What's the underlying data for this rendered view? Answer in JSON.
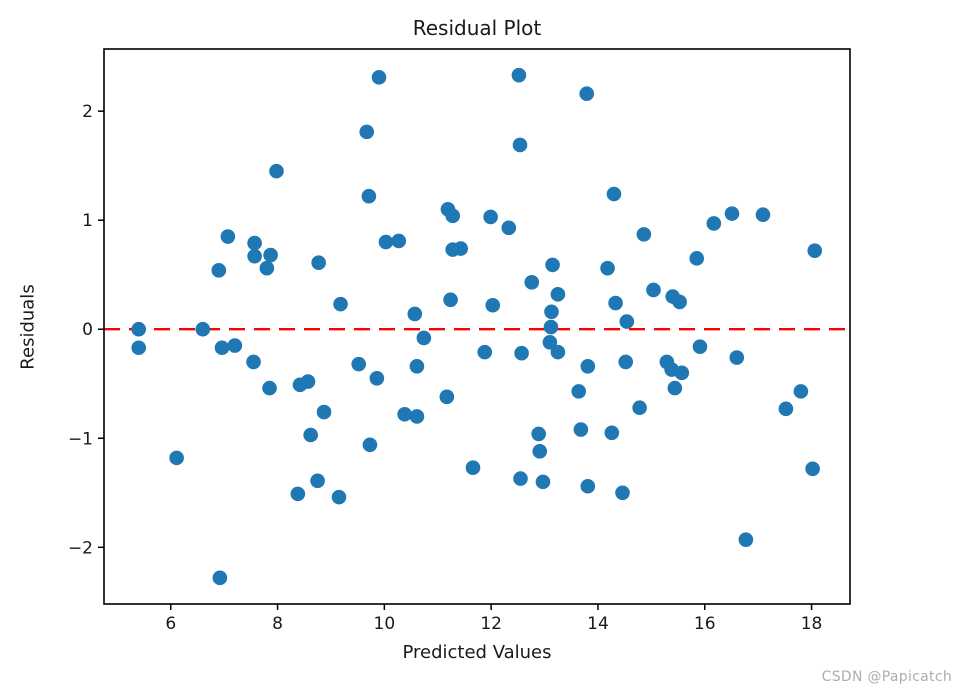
{
  "title": "Residual Plot",
  "watermark": "CSDN @Papicatch",
  "chart_data": {
    "type": "scatter",
    "title": "Residual Plot",
    "xlabel": "Predicted Values",
    "ylabel": "Residuals",
    "xlim": [
      4.75,
      18.72
    ],
    "ylim": [
      -2.52,
      2.57
    ],
    "x_ticks": [
      6,
      8,
      10,
      12,
      14,
      16,
      18
    ],
    "y_ticks": [
      -2,
      -1,
      0,
      1,
      2
    ],
    "grid": false,
    "legend": null,
    "point_color": "#1f77b4",
    "axis_color": "#000000",
    "zero_line": {
      "y": 0,
      "color": "#ff0000",
      "style": "dashed",
      "width": 2.4
    },
    "points": [
      [
        9.9,
        2.31
      ],
      [
        12.52,
        2.33
      ],
      [
        13.79,
        2.16
      ],
      [
        9.67,
        1.81
      ],
      [
        12.54,
        1.69
      ],
      [
        7.98,
        1.45
      ],
      [
        9.71,
        1.22
      ],
      [
        14.3,
        1.24
      ],
      [
        11.19,
        1.1
      ],
      [
        11.28,
        1.04
      ],
      [
        11.99,
        1.03
      ],
      [
        16.51,
        1.06
      ],
      [
        17.09,
        1.05
      ],
      [
        16.17,
        0.97
      ],
      [
        12.33,
        0.93
      ],
      [
        14.86,
        0.87
      ],
      [
        7.07,
        0.85
      ],
      [
        10.03,
        0.8
      ],
      [
        10.27,
        0.81
      ],
      [
        7.57,
        0.79
      ],
      [
        7.57,
        0.67
      ],
      [
        7.87,
        0.68
      ],
      [
        7.8,
        0.56
      ],
      [
        6.9,
        0.54
      ],
      [
        8.77,
        0.61
      ],
      [
        11.28,
        0.73
      ],
      [
        11.43,
        0.74
      ],
      [
        13.15,
        0.59
      ],
      [
        12.76,
        0.43
      ],
      [
        13.25,
        0.32
      ],
      [
        11.24,
        0.27
      ],
      [
        12.03,
        0.22
      ],
      [
        9.18,
        0.23
      ],
      [
        10.57,
        0.14
      ],
      [
        13.13,
        0.16
      ],
      [
        13.12,
        0.02
      ],
      [
        5.4,
        0.0
      ],
      [
        6.6,
        0.0
      ],
      [
        14.18,
        0.56
      ],
      [
        15.85,
        0.65
      ],
      [
        18.06,
        0.72
      ],
      [
        15.04,
        0.36
      ],
      [
        15.4,
        0.3
      ],
      [
        15.53,
        0.25
      ],
      [
        14.33,
        0.24
      ],
      [
        14.54,
        0.07
      ],
      [
        10.74,
        -0.08
      ],
      [
        5.4,
        -0.17
      ],
      [
        6.96,
        -0.17
      ],
      [
        7.2,
        -0.15
      ],
      [
        7.55,
        -0.3
      ],
      [
        13.1,
        -0.12
      ],
      [
        13.25,
        -0.21
      ],
      [
        11.88,
        -0.21
      ],
      [
        12.57,
        -0.22
      ],
      [
        15.91,
        -0.16
      ],
      [
        9.52,
        -0.32
      ],
      [
        9.86,
        -0.45
      ],
      [
        10.61,
        -0.34
      ],
      [
        7.85,
        -0.54
      ],
      [
        8.42,
        -0.51
      ],
      [
        8.57,
        -0.48
      ],
      [
        11.17,
        -0.62
      ],
      [
        10.38,
        -0.78
      ],
      [
        10.61,
        -0.8
      ],
      [
        8.87,
        -0.76
      ],
      [
        13.64,
        -0.57
      ],
      [
        13.81,
        -0.34
      ],
      [
        14.52,
        -0.3
      ],
      [
        15.29,
        -0.3
      ],
      [
        15.38,
        -0.37
      ],
      [
        15.57,
        -0.4
      ],
      [
        15.44,
        -0.54
      ],
      [
        16.6,
        -0.26
      ],
      [
        14.78,
        -0.72
      ],
      [
        17.52,
        -0.73
      ],
      [
        17.8,
        -0.57
      ],
      [
        8.62,
        -0.97
      ],
      [
        6.11,
        -1.18
      ],
      [
        9.73,
        -1.06
      ],
      [
        8.75,
        -1.39
      ],
      [
        8.38,
        -1.51
      ],
      [
        9.15,
        -1.54
      ],
      [
        6.92,
        -2.28
      ],
      [
        11.66,
        -1.27
      ],
      [
        12.55,
        -1.37
      ],
      [
        12.89,
        -0.96
      ],
      [
        12.91,
        -1.12
      ],
      [
        12.97,
        -1.4
      ],
      [
        13.68,
        -0.92
      ],
      [
        13.81,
        -1.44
      ],
      [
        14.26,
        -0.95
      ],
      [
        14.46,
        -1.5
      ],
      [
        18.02,
        -1.28
      ],
      [
        16.77,
        -1.93
      ]
    ]
  }
}
